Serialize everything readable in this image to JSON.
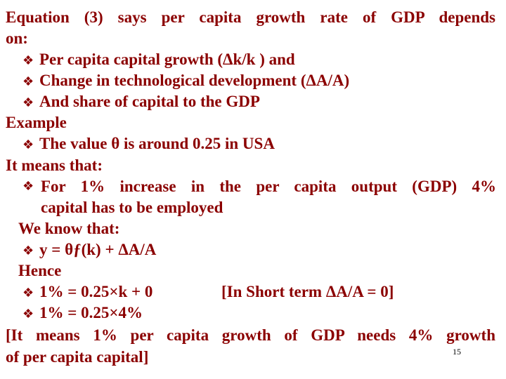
{
  "colors": {
    "text": "#8b0000",
    "background": "#ffffff",
    "slide_number": "#000000"
  },
  "bullet_icon": "four-diamond-bullet",
  "lines": {
    "intro_1": "Equation (3) says per capita growth rate of GDP depends",
    "intro_2": "on:",
    "b1": "Per capita capital growth (Δk/k ) and",
    "b2": "Change in technological development (ΔA/A)",
    "b3": "And share of capital to the GDP",
    "example": "Example",
    "b4": "The value θ is around 0.25 in USA",
    "it_means": "It means that:",
    "b5_1": "For 1% increase in the per capita output (GDP) 4%",
    "b5_2": "capital has to be employed",
    "we_know": "We know that:",
    "b6": "y = θƒ(k) + ΔA/A",
    "hence": "Hence",
    "b7": "1% = 0.25×k + 0",
    "b7_note": "[In Short term ΔA/A = 0]",
    "b8": "1% = 0.25×4%",
    "conclusion_1": "[It means 1% per capita growth of GDP needs 4% growth",
    "conclusion_2": "of per capita capital]"
  },
  "slide_number": "15"
}
